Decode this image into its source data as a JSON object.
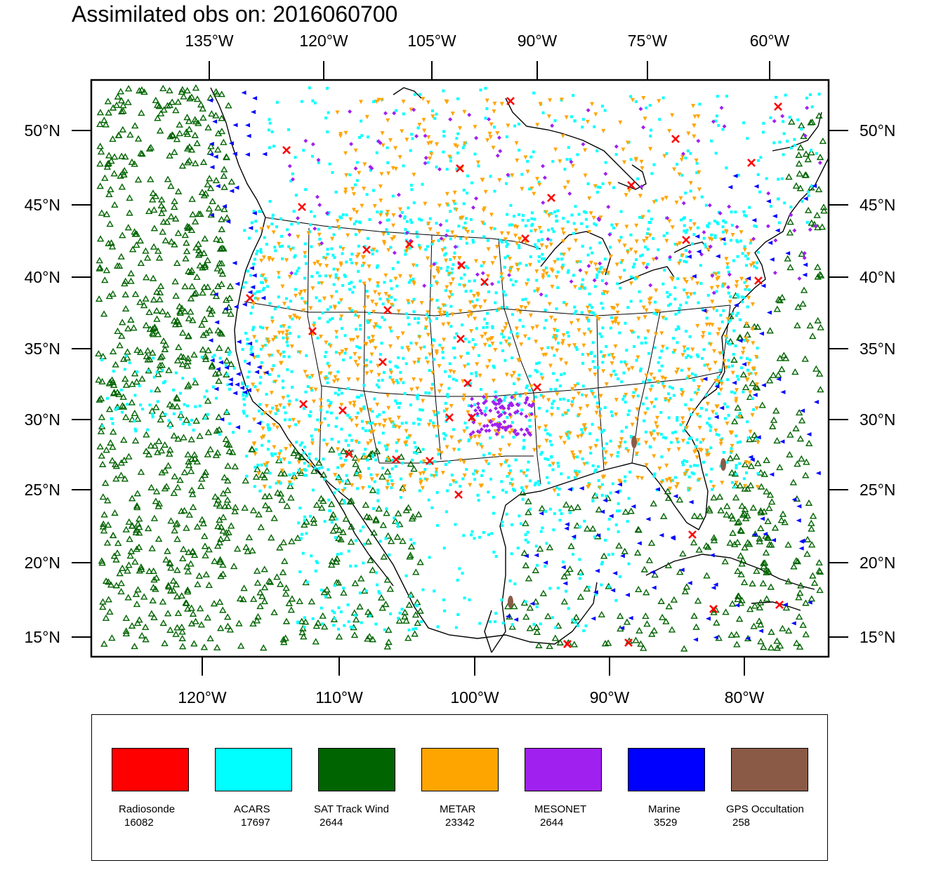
{
  "title": "Assimilated obs on: 2016060700",
  "axes": {
    "top_lon_labels": [
      "135°W",
      "120°W",
      "105°W",
      "90°W",
      "75°W",
      "60°W"
    ],
    "bottom_lon_labels": [
      "120°W",
      "110°W",
      "100°W",
      "90°W",
      "80°W"
    ],
    "lat_labels": [
      "50°N",
      "45°N",
      "40°N",
      "35°N",
      "30°N",
      "25°N",
      "20°N",
      "15°N"
    ]
  },
  "legend": [
    {
      "name": "Radiosonde",
      "count": "16082",
      "color": "#ff0000",
      "marker": "x-mark-icon"
    },
    {
      "name": "ACARS",
      "count": "17697",
      "color": "#00ffff",
      "marker": "square-dot-icon"
    },
    {
      "name": "SAT Track Wind",
      "count": "2644",
      "color": "#006400",
      "marker": "open-triangle-icon"
    },
    {
      "name": "METAR",
      "count": "23342",
      "color": "#ffa500",
      "marker": "down-triangle-icon"
    },
    {
      "name": "MESONET",
      "count": "2644",
      "color": "#a020f0",
      "marker": "diamond-icon"
    },
    {
      "name": "Marine",
      "count": "3529",
      "color": "#0000ff",
      "marker": "left-triangle-icon"
    },
    {
      "name": "GPS Occultation",
      "count": "258",
      "color": "#8b5a46",
      "marker": "oval-icon"
    }
  ]
}
